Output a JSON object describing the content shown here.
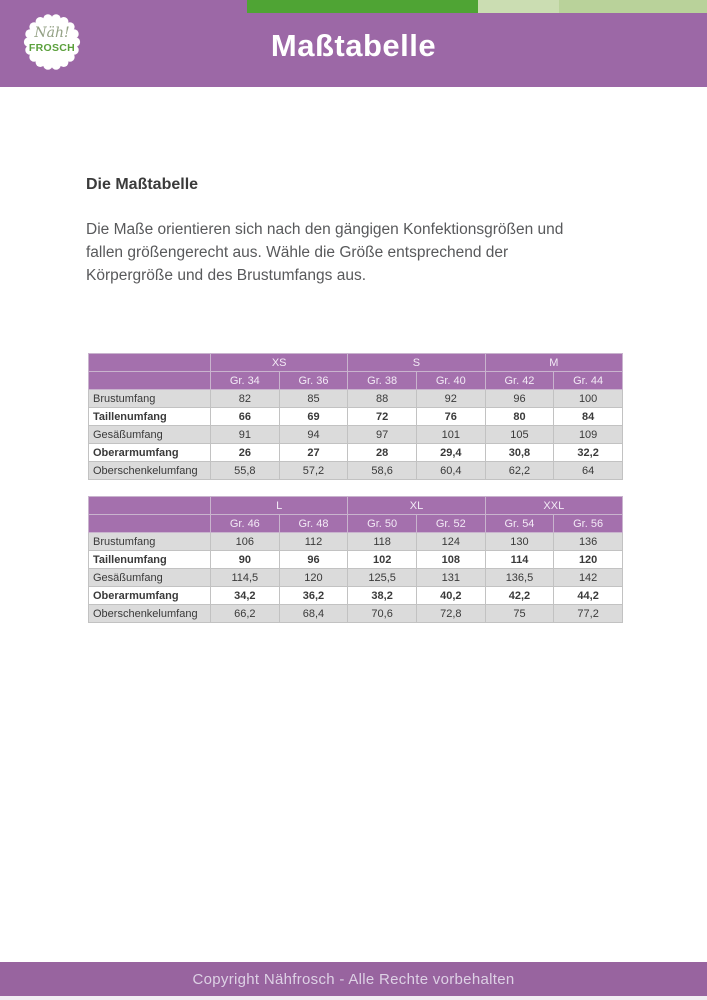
{
  "header": {
    "title": "Maßtabelle",
    "logo": {
      "script": "Näh!",
      "name": "FROSCH"
    }
  },
  "content": {
    "heading": "Die Maßtabelle",
    "paragraph": "Die Maße orientieren sich nach den gängigen Konfektionsgrößen und fallen größengerecht aus. Wähle die Größe entsprechend der Körpergröße und des Brustumfangs aus."
  },
  "tables": [
    {
      "groups": [
        {
          "label": "XS",
          "cols": [
            "Gr. 34",
            "Gr. 36"
          ]
        },
        {
          "label": "S",
          "cols": [
            "Gr. 38",
            "Gr. 40"
          ]
        },
        {
          "label": "M",
          "cols": [
            "Gr. 42",
            "Gr. 44"
          ]
        }
      ],
      "rows": [
        {
          "label": "Brustumfang",
          "values": [
            "82",
            "85",
            "88",
            "92",
            "96",
            "100"
          ],
          "bold": false
        },
        {
          "label": "Taillenumfang",
          "values": [
            "66",
            "69",
            "72",
            "76",
            "80",
            "84"
          ],
          "bold": true
        },
        {
          "label": "Gesäßumfang",
          "values": [
            "91",
            "94",
            "97",
            "101",
            "105",
            "109"
          ],
          "bold": false
        },
        {
          "label": "Oberarmumfang",
          "values": [
            "26",
            "27",
            "28",
            "29,4",
            "30,8",
            "32,2"
          ],
          "bold": true
        },
        {
          "label": "Oberschenkelumfang",
          "values": [
            "55,8",
            "57,2",
            "58,6",
            "60,4",
            "62,2",
            "64"
          ],
          "bold": false
        }
      ]
    },
    {
      "groups": [
        {
          "label": "L",
          "cols": [
            "Gr. 46",
            "Gr. 48"
          ]
        },
        {
          "label": "XL",
          "cols": [
            "Gr. 50",
            "Gr. 52"
          ]
        },
        {
          "label": "XXL",
          "cols": [
            "Gr. 54",
            "Gr. 56"
          ]
        }
      ],
      "rows": [
        {
          "label": "Brustumfang",
          "values": [
            "106",
            "112",
            "118",
            "124",
            "130",
            "136"
          ],
          "bold": false
        },
        {
          "label": "Taillenumfang",
          "values": [
            "90",
            "96",
            "102",
            "108",
            "114",
            "120"
          ],
          "bold": true
        },
        {
          "label": "Gesäßumfang",
          "values": [
            "114,5",
            "120",
            "125,5",
            "131",
            "136,5",
            "142"
          ],
          "bold": false
        },
        {
          "label": "Oberarmumfang",
          "values": [
            "34,2",
            "36,2",
            "38,2",
            "40,2",
            "42,2",
            "44,2"
          ],
          "bold": true
        },
        {
          "label": "Oberschenkelumfang",
          "values": [
            "66,2",
            "68,4",
            "70,6",
            "72,8",
            "75",
            "77,2"
          ],
          "bold": false
        }
      ]
    }
  ],
  "footer": {
    "text": "Copyright Nähfrosch - Alle Rechte vorbehalten"
  },
  "colors": {
    "header_purple": "#9c68a6",
    "table_header_purple": "#a470ad",
    "footer_purple": "#98649f",
    "green_dark": "#4fa434",
    "green_light": "#cbddb2",
    "green_mid": "#b9d29a",
    "row_shade_gray": "#dbdbdb",
    "logo_green": "#5ba03c"
  }
}
